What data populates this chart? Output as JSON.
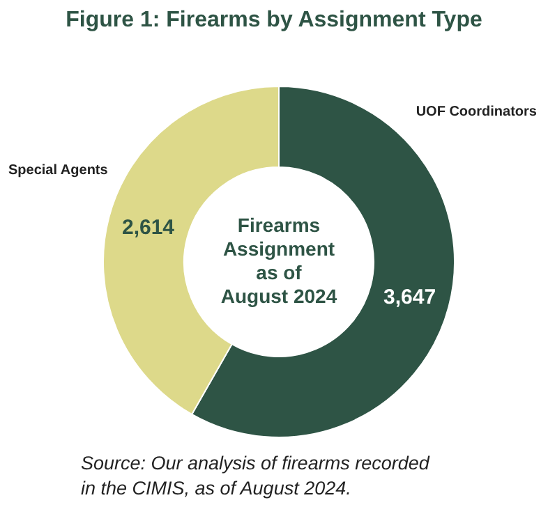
{
  "chart_data": {
    "type": "donut",
    "title": "Figure 1: Firearms by Assignment Type",
    "categories": [
      "UOF Coordinators",
      "Special Agents"
    ],
    "values": [
      3647,
      2614
    ],
    "colors": [
      "#2e5445",
      "#ddd98a"
    ],
    "value_labels": [
      "3,647",
      "2,614"
    ],
    "annotations": [
      "Firearms Assignment as of August 2024",
      "Source: Our analysis of firearms recorded in the CIMIS, as of August 2024."
    ]
  }
}
